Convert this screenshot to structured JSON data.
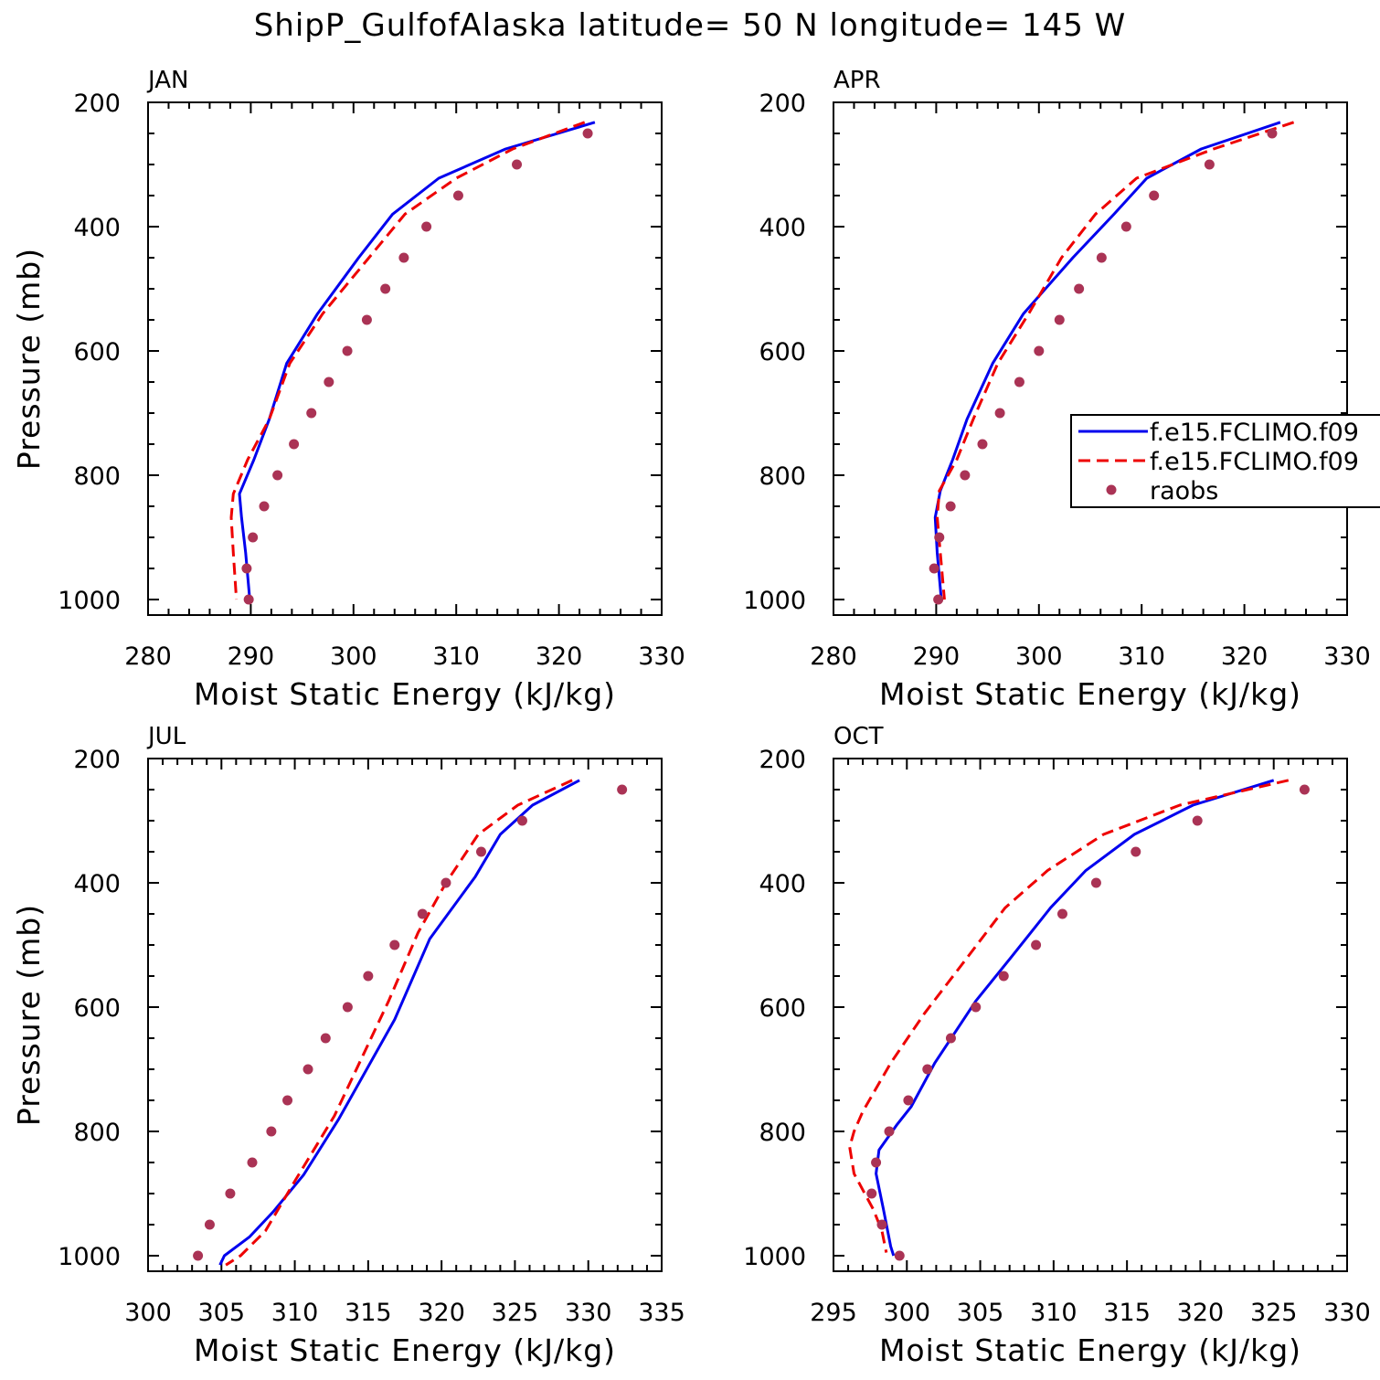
{
  "title": "ShipP_GulfofAlaska  latitude= 50 N longitude= 145 W",
  "colors": {
    "model1": "#0000ee",
    "model2": "#ee0000",
    "raobs": "#aa3355"
  },
  "legend": {
    "entries": [
      "f.e15.FCLIMO.f09",
      "f.e15.FCLIMO.f09",
      "raobs"
    ]
  },
  "chart_data": [
    {
      "type": "line",
      "panel_label": "JAN",
      "xlabel": "Moist Static Energy (kJ/kg)",
      "ylabel": "Pressure (mb)",
      "xlim": [
        280,
        330
      ],
      "ylim": [
        200,
        1025
      ],
      "y_inverted": true,
      "xticks": [
        280,
        290,
        300,
        310,
        320,
        330
      ],
      "yticks": [
        200,
        400,
        600,
        800,
        1000
      ],
      "series": [
        {
          "style": "solid-blue",
          "points": [
            [
              323.5,
              232
            ],
            [
              314.8,
              275
            ],
            [
              308.3,
              322
            ],
            [
              303.8,
              380
            ],
            [
              300.5,
              450
            ],
            [
              296.5,
              540
            ],
            [
              293.5,
              620
            ],
            [
              291.8,
              710
            ],
            [
              290.3,
              775
            ],
            [
              288.9,
              830
            ],
            [
              289.1,
              868
            ],
            [
              289.5,
              925
            ],
            [
              289.9,
              1000
            ]
          ]
        },
        {
          "style": "dashed-red",
          "points": [
            [
              322.5,
              232
            ],
            [
              315.5,
              275
            ],
            [
              310,
              322
            ],
            [
              305,
              380
            ],
            [
              301.5,
              450
            ],
            [
              297,
              540
            ],
            [
              293.8,
              620
            ],
            [
              291.8,
              710
            ],
            [
              289.7,
              775
            ],
            [
              288.3,
              830
            ],
            [
              288.1,
              868
            ],
            [
              288.3,
              925
            ],
            [
              288.6,
              1000
            ]
          ]
        },
        {
          "style": "dots-raobs",
          "points": [
            [
              322.8,
              250
            ],
            [
              315.9,
              300
            ],
            [
              310.2,
              350
            ],
            [
              307.1,
              400
            ],
            [
              304.9,
              450
            ],
            [
              303.1,
              500
            ],
            [
              301.3,
              550
            ],
            [
              299.4,
              600
            ],
            [
              297.6,
              650
            ],
            [
              295.9,
              700
            ],
            [
              294.2,
              750
            ],
            [
              292.6,
              800
            ],
            [
              291.3,
              850
            ],
            [
              290.2,
              900
            ],
            [
              289.6,
              950
            ],
            [
              289.8,
              1000
            ]
          ]
        }
      ]
    },
    {
      "type": "line",
      "panel_label": "APR",
      "xlabel": "Moist Static Energy (kJ/kg)",
      "ylabel": "",
      "xlim": [
        280,
        330
      ],
      "ylim": [
        200,
        1025
      ],
      "y_inverted": true,
      "xticks": [
        280,
        290,
        300,
        310,
        320,
        330
      ],
      "yticks": [
        200,
        400,
        600,
        800,
        1000
      ],
      "series": [
        {
          "style": "solid-blue",
          "points": [
            [
              323.5,
              232
            ],
            [
              315.8,
              275
            ],
            [
              310.5,
              322
            ],
            [
              307.3,
              380
            ],
            [
              303.3,
              450
            ],
            [
              298.5,
              540
            ],
            [
              295.5,
              620
            ],
            [
              293,
              710
            ],
            [
              291.6,
              775
            ],
            [
              290.4,
              825
            ],
            [
              289.9,
              868
            ],
            [
              290.1,
              925
            ],
            [
              290.5,
              1000
            ]
          ]
        },
        {
          "style": "dashed-red",
          "points": [
            [
              324.8,
              232
            ],
            [
              317,
              275
            ],
            [
              309.5,
              322
            ],
            [
              305.5,
              380
            ],
            [
              302.2,
              450
            ],
            [
              299,
              540
            ],
            [
              296,
              620
            ],
            [
              293.6,
              710
            ],
            [
              292,
              775
            ],
            [
              290.3,
              825
            ],
            [
              290.1,
              868
            ],
            [
              290.4,
              925
            ],
            [
              290.8,
              1000
            ]
          ]
        },
        {
          "style": "dots-raobs",
          "points": [
            [
              322.7,
              250
            ],
            [
              316.6,
              300
            ],
            [
              311.2,
              350
            ],
            [
              308.5,
              400
            ],
            [
              306.1,
              450
            ],
            [
              303.9,
              500
            ],
            [
              302,
              550
            ],
            [
              300,
              600
            ],
            [
              298.1,
              650
            ],
            [
              296.2,
              700
            ],
            [
              294.5,
              750
            ],
            [
              292.8,
              800
            ],
            [
              291.4,
              850
            ],
            [
              290.3,
              900
            ],
            [
              289.8,
              950
            ],
            [
              290.2,
              1000
            ]
          ]
        }
      ]
    },
    {
      "type": "line",
      "panel_label": "JUL",
      "xlabel": "Moist Static Energy (kJ/kg)",
      "ylabel": "Pressure (mb)",
      "xlim": [
        300,
        335
      ],
      "ylim": [
        200,
        1025
      ],
      "y_inverted": true,
      "xticks": [
        300,
        305,
        310,
        315,
        320,
        325,
        330,
        335
      ],
      "yticks": [
        200,
        400,
        600,
        800,
        1000
      ],
      "series": [
        {
          "style": "solid-blue",
          "points": [
            [
              329.4,
              235
            ],
            [
              326.2,
              275
            ],
            [
              324,
              322
            ],
            [
              322.3,
              390
            ],
            [
              319.2,
              490
            ],
            [
              316.8,
              620
            ],
            [
              313,
              780
            ],
            [
              310.6,
              870
            ],
            [
              308.5,
              930
            ],
            [
              306.9,
              970
            ],
            [
              305.2,
              1000
            ],
            [
              304.9,
              1015
            ]
          ]
        },
        {
          "style": "dashed-red",
          "points": [
            [
              328.9,
              235
            ],
            [
              325.2,
              275
            ],
            [
              322.5,
              322
            ],
            [
              320.3,
              400
            ],
            [
              318.4,
              480
            ],
            [
              316.4,
              590
            ],
            [
              312.7,
              775
            ],
            [
              310,
              880
            ],
            [
              308,
              960
            ],
            [
              306.3,
              1000
            ],
            [
              305.3,
              1015
            ]
          ]
        },
        {
          "style": "dots-raobs",
          "points": [
            [
              332.3,
              250
            ],
            [
              325.5,
              300
            ],
            [
              322.7,
              350
            ],
            [
              320.3,
              400
            ],
            [
              318.7,
              450
            ],
            [
              316.8,
              500
            ],
            [
              315,
              550
            ],
            [
              313.6,
              600
            ],
            [
              312.1,
              650
            ],
            [
              310.9,
              700
            ],
            [
              309.5,
              750
            ],
            [
              308.4,
              800
            ],
            [
              307.1,
              850
            ],
            [
              305.6,
              900
            ],
            [
              304.2,
              950
            ],
            [
              303.4,
              1000
            ]
          ]
        }
      ]
    },
    {
      "type": "line",
      "panel_label": "OCT",
      "xlabel": "Moist Static Energy (kJ/kg)",
      "ylabel": "",
      "xlim": [
        295,
        330
      ],
      "ylim": [
        200,
        1025
      ],
      "y_inverted": true,
      "xticks": [
        295,
        300,
        305,
        310,
        315,
        320,
        325,
        330
      ],
      "yticks": [
        200,
        400,
        600,
        800,
        1000
      ],
      "series": [
        {
          "style": "solid-blue",
          "points": [
            [
              325,
              235
            ],
            [
              319.5,
              275
            ],
            [
              315.5,
              322
            ],
            [
              312.2,
              380
            ],
            [
              309.8,
              440
            ],
            [
              307.1,
              520
            ],
            [
              304.7,
              590
            ],
            [
              301.9,
              690
            ],
            [
              300.3,
              760
            ],
            [
              299.3,
              790
            ],
            [
              298.1,
              830
            ],
            [
              297.9,
              868
            ],
            [
              298.4,
              925
            ],
            [
              298.9,
              985
            ],
            [
              299.1,
              1000
            ]
          ]
        },
        {
          "style": "dashed-red",
          "points": [
            [
              326,
              235
            ],
            [
              318.6,
              275
            ],
            [
              313.4,
              322
            ],
            [
              309.6,
              380
            ],
            [
              306.7,
              440
            ],
            [
              303.8,
              530
            ],
            [
              301.2,
              610
            ],
            [
              298.9,
              690
            ],
            [
              297,
              768
            ],
            [
              296.4,
              800
            ],
            [
              296.1,
              825
            ],
            [
              296.4,
              868
            ],
            [
              297.7,
              925
            ],
            [
              298.3,
              960
            ],
            [
              298.6,
              995
            ]
          ]
        },
        {
          "style": "dots-raobs",
          "points": [
            [
              327.1,
              250
            ],
            [
              319.8,
              300
            ],
            [
              315.6,
              350
            ],
            [
              312.9,
              400
            ],
            [
              310.6,
              450
            ],
            [
              308.8,
              500
            ],
            [
              306.6,
              550
            ],
            [
              304.7,
              600
            ],
            [
              303,
              650
            ],
            [
              301.4,
              700
            ],
            [
              300.1,
              750
            ],
            [
              298.8,
              800
            ],
            [
              297.9,
              850
            ],
            [
              297.6,
              900
            ],
            [
              298.3,
              950
            ],
            [
              299.5,
              1000
            ]
          ]
        }
      ]
    }
  ]
}
